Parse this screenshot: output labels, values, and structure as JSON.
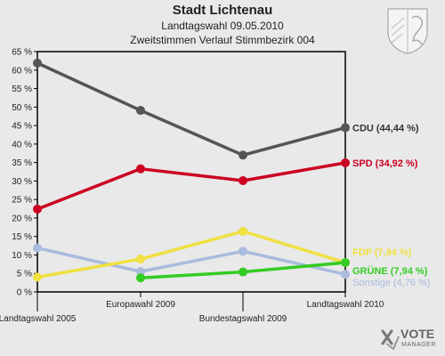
{
  "header": {
    "title": "Stadt Lichtenau",
    "subtitle1": "Landtagswahl 09.05.2010",
    "subtitle2": "Zweitstimmen Verlauf Stimmbezirk 004"
  },
  "branding": {
    "logo_word": "VOTE",
    "logo_sub": "MANAGER"
  },
  "chart_data": {
    "type": "line",
    "title": "Stadt Lichtenau",
    "categories": [
      "Landtagswahl 2005",
      "Europawahl 2009",
      "Bundestagswahl 2009",
      "Landtagswahl 2010"
    ],
    "ylim": [
      0,
      65
    ],
    "yticks": [
      "0 %",
      "5 %",
      "10 %",
      "15 %",
      "20 %",
      "25 %",
      "30 %",
      "35 %",
      "40 %",
      "45 %",
      "50 %",
      "55 %",
      "60 %",
      "65 %"
    ],
    "grid": false,
    "series": [
      {
        "name": "CDU (44,44 %)",
        "color": "#555555",
        "values": [
          61.9,
          49.1,
          37.0,
          44.44
        ]
      },
      {
        "name": "SPD (34,92 %)",
        "color": "#cc0022",
        "values": [
          22.4,
          33.3,
          30.1,
          34.92
        ]
      },
      {
        "name": "FDP (7,94 %)",
        "color": "#f0e040",
        "values": [
          4.0,
          8.9,
          16.4,
          7.94
        ]
      },
      {
        "name": "GRÜNE (7,94 %)",
        "color": "#33cc22",
        "values": [
          null,
          3.8,
          5.4,
          7.94
        ]
      },
      {
        "name": "Sonstige (4,76 %)",
        "color": "#aabbdd",
        "values": [
          11.9,
          5.5,
          11.0,
          4.76
        ]
      }
    ]
  }
}
